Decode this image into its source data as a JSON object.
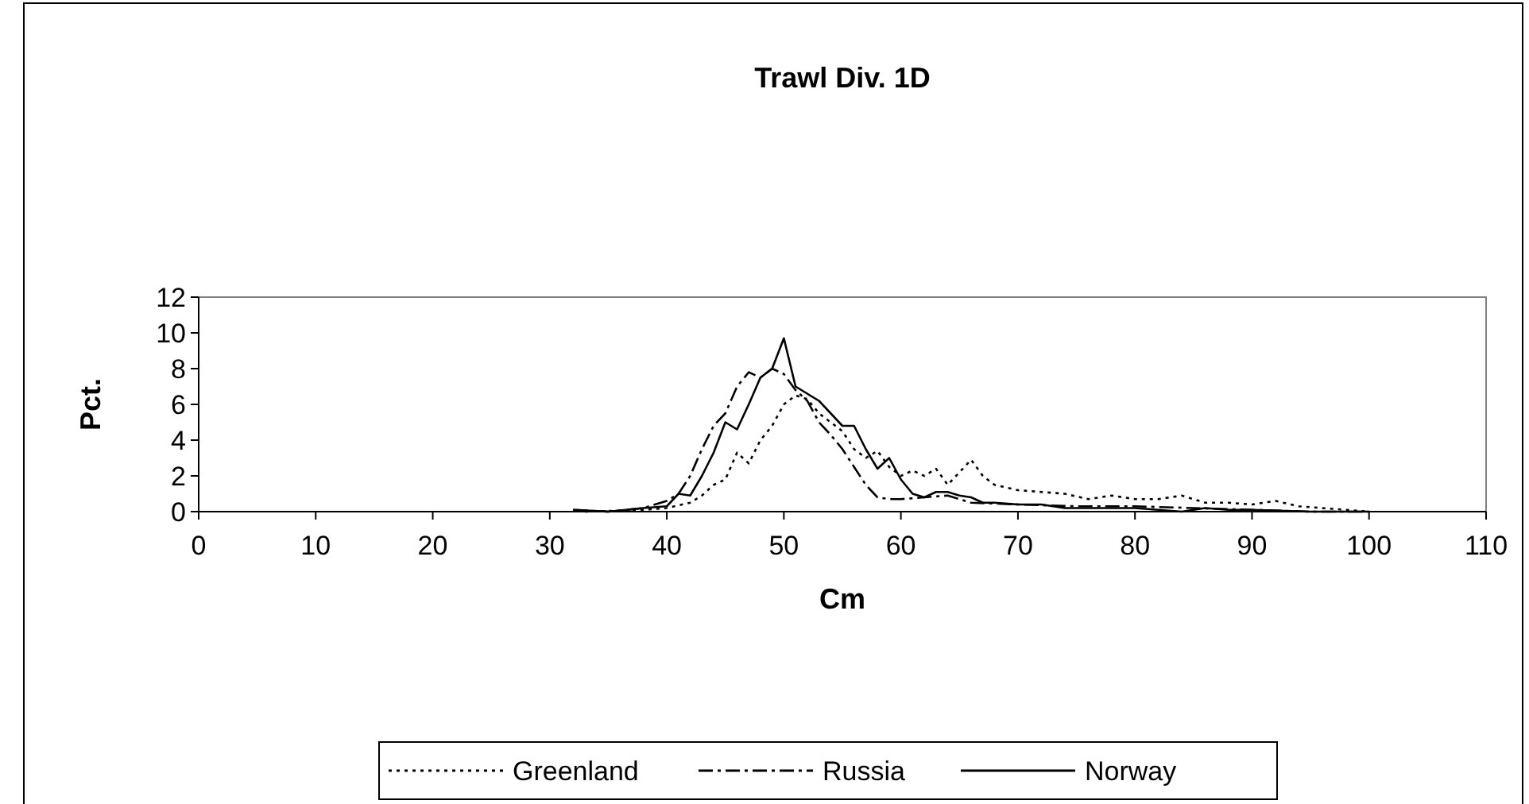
{
  "chart_data": {
    "type": "line",
    "title": "Trawl Div. 1D",
    "xlabel": "Cm",
    "ylabel": "Pct.",
    "xlim": [
      0,
      110
    ],
    "xticks": [
      0,
      10,
      20,
      30,
      40,
      50,
      60,
      70,
      80,
      90,
      100,
      110
    ],
    "ylim": [
      0,
      12
    ],
    "yticks": [
      0,
      2,
      4,
      6,
      8,
      10,
      12
    ],
    "grid": false,
    "legend": "bottom",
    "marker": "none",
    "series": [
      {
        "name": "Greenland",
        "color": "#000000",
        "line_style": "dotted",
        "x": [
          33,
          38,
          40,
          42,
          43,
          44,
          45,
          46,
          47,
          48,
          49,
          50,
          51,
          52,
          53,
          54,
          55,
          56,
          57,
          58,
          59,
          60,
          61,
          62,
          63,
          64,
          65,
          66,
          67,
          68,
          70,
          72,
          74,
          76,
          78,
          80,
          82,
          84,
          86,
          88,
          90,
          92,
          94,
          96,
          98,
          100
        ],
        "values": [
          0,
          0.1,
          0.2,
          0.5,
          0.9,
          1.5,
          1.8,
          3.3,
          2.7,
          4,
          4.8,
          6,
          6.5,
          6.3,
          5.5,
          5,
          4.5,
          3.5,
          3,
          3.4,
          2.5,
          2,
          2.3,
          2,
          2.4,
          1.5,
          2.2,
          2.9,
          2,
          1.5,
          1.2,
          1.1,
          1,
          0.7,
          0.9,
          0.7,
          0.7,
          0.9,
          0.5,
          0.5,
          0.4,
          0.6,
          0.3,
          0.2,
          0.1,
          0
        ]
      },
      {
        "name": "Russia",
        "color": "#000000",
        "line_style": "dashed",
        "x": [
          32,
          35,
          38,
          40,
          41,
          42,
          43,
          44,
          45,
          46,
          47,
          48,
          49,
          50,
          51,
          52,
          53,
          54,
          55,
          56,
          57,
          58,
          59,
          60,
          62,
          64,
          66,
          70,
          75,
          80,
          85,
          90,
          95,
          100
        ],
        "values": [
          0.1,
          0,
          0.2,
          0.6,
          1,
          2,
          3.5,
          4.8,
          5.5,
          7,
          7.8,
          7.5,
          8,
          7.7,
          6.8,
          6.2,
          5,
          4.3,
          3.5,
          2.5,
          1.5,
          0.8,
          0.7,
          0.7,
          0.8,
          0.9,
          0.5,
          0.4,
          0.3,
          0.3,
          0.2,
          0.1,
          0,
          0
        ]
      },
      {
        "name": "Norway",
        "color": "#000000",
        "line_style": "solid",
        "x": [
          32,
          35,
          38,
          40,
          41,
          42,
          43,
          44,
          45,
          46,
          47,
          48,
          49,
          50,
          51,
          52,
          53,
          54,
          55,
          56,
          57,
          58,
          59,
          60,
          61,
          62,
          63,
          64,
          65,
          66,
          67,
          68,
          70,
          72,
          74,
          76,
          78,
          80,
          82,
          84,
          86,
          88,
          90,
          95,
          100
        ],
        "values": [
          0.1,
          0,
          0.2,
          0.3,
          1,
          0.9,
          2,
          3.3,
          5,
          4.6,
          6,
          7.5,
          8,
          9.7,
          7,
          6.6,
          6.2,
          5.5,
          4.8,
          4.8,
          3.5,
          2.4,
          3,
          1.8,
          1,
          0.8,
          1.1,
          1.1,
          0.9,
          0.8,
          0.5,
          0.5,
          0.4,
          0.4,
          0.2,
          0.2,
          0.2,
          0.2,
          0.1,
          0,
          0.2,
          0.1,
          0.1,
          0,
          0
        ]
      }
    ]
  }
}
